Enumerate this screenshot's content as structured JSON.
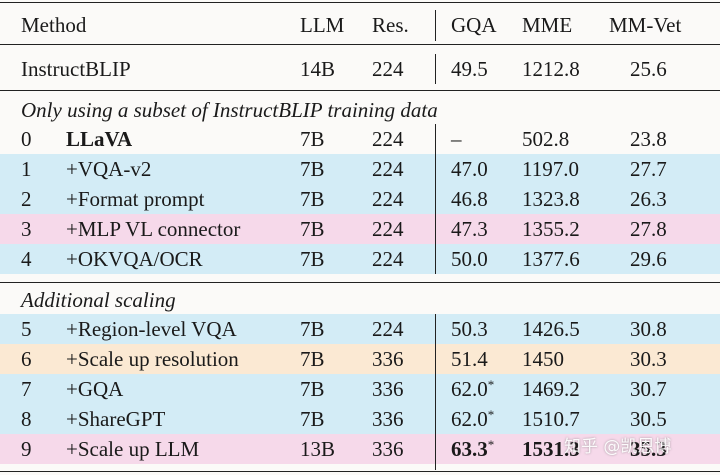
{
  "header": {
    "method": "Method",
    "llm": "LLM",
    "res": "Res.",
    "gqa": "GQA",
    "mme": "MME",
    "mmvet": "MM-Vet"
  },
  "baseline": {
    "method": "InstructBLIP",
    "llm": "14B",
    "res": "224",
    "gqa": "49.5",
    "mme": "1212.8",
    "mmvet": "25.6"
  },
  "section1": {
    "title": "Only using a subset of InstructBLIP training data",
    "rows": [
      {
        "idx": "0",
        "method": "LLaVA",
        "llm": "7B",
        "res": "224",
        "gqa": "–",
        "gqa_star": "",
        "mme": "502.8",
        "mmvet": "23.8"
      },
      {
        "idx": "1",
        "method": "+VQA-v2",
        "llm": "7B",
        "res": "224",
        "gqa": "47.0",
        "gqa_star": "",
        "mme": "1197.0",
        "mmvet": "27.7"
      },
      {
        "idx": "2",
        "method": "+Format prompt",
        "llm": "7B",
        "res": "224",
        "gqa": "46.8",
        "gqa_star": "",
        "mme": "1323.8",
        "mmvet": "26.3"
      },
      {
        "idx": "3",
        "method": "+MLP VL connector",
        "llm": "7B",
        "res": "224",
        "gqa": "47.3",
        "gqa_star": "",
        "mme": "1355.2",
        "mmvet": "27.8"
      },
      {
        "idx": "4",
        "method": "+OKVQA/OCR",
        "llm": "7B",
        "res": "224",
        "gqa": "50.0",
        "gqa_star": "",
        "mme": "1377.6",
        "mmvet": "29.6"
      }
    ]
  },
  "section2": {
    "title": "Additional scaling",
    "rows": [
      {
        "idx": "5",
        "method": "+Region-level VQA",
        "llm": "7B",
        "res": "224",
        "gqa": "50.3",
        "gqa_star": "",
        "mme": "1426.5",
        "mmvet": "30.8"
      },
      {
        "idx": "6",
        "method": "+Scale up resolution",
        "llm": "7B",
        "res": "336",
        "gqa": "51.4",
        "gqa_star": "",
        "mme": "1450",
        "mmvet": "30.3"
      },
      {
        "idx": "7",
        "method": "+GQA",
        "llm": "7B",
        "res": "336",
        "gqa": "62.0",
        "gqa_star": "*",
        "mme": "1469.2",
        "mmvet": "30.7"
      },
      {
        "idx": "8",
        "method": "+ShareGPT",
        "llm": "7B",
        "res": "336",
        "gqa": "62.0",
        "gqa_star": "*",
        "mme": "1510.7",
        "mmvet": "30.5"
      },
      {
        "idx": "9",
        "method": "+Scale up LLM",
        "llm": "13B",
        "res": "336",
        "gqa": "63.3",
        "gqa_star": "*",
        "mme": "1531.3",
        "mmvet": "35.3"
      }
    ]
  },
  "watermark": "知乎 @凯恩博"
}
